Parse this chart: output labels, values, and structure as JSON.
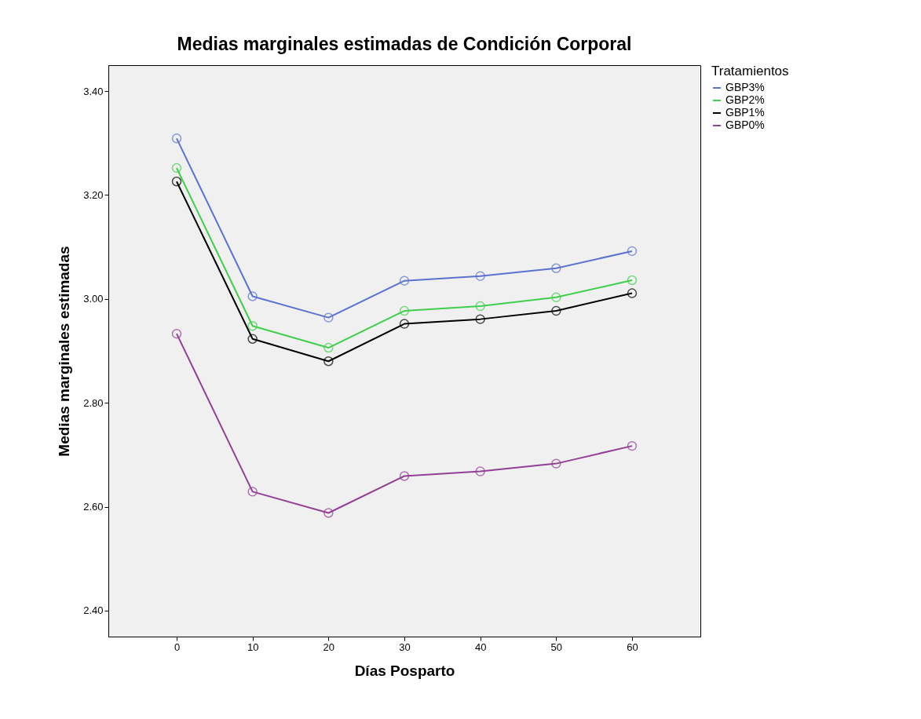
{
  "chart_data": {
    "type": "line",
    "title": "Medias marginales estimadas de Condición Corporal",
    "xlabel": "Días Posparto",
    "ylabel": "Medias marginales estimadas",
    "legend_title": "Tratamientos",
    "legend": "right",
    "marker": "circle",
    "grid": false,
    "x": [
      0,
      10,
      20,
      30,
      40,
      50,
      60
    ],
    "xlim": [
      -9,
      69
    ],
    "xticks": [
      0,
      10,
      20,
      30,
      40,
      50,
      60
    ],
    "ylim": [
      2.35,
      3.45
    ],
    "yticks": [
      {
        "value": 2.4,
        "label": "2.40"
      },
      {
        "value": 2.6,
        "label": "2.60"
      },
      {
        "value": 2.8,
        "label": "2.80"
      },
      {
        "value": 3.0,
        "label": "3.00"
      },
      {
        "value": 3.2,
        "label": "3.20"
      },
      {
        "value": 3.4,
        "label": "3.40"
      }
    ],
    "series": [
      {
        "name": "GBP3%",
        "color": "#5b73cf",
        "values": [
          3.309,
          3.005,
          2.964,
          3.035,
          3.044,
          3.059,
          3.092
        ]
      },
      {
        "name": "GBP2%",
        "color": "#3fcf4c",
        "values": [
          3.252,
          2.948,
          2.906,
          2.977,
          2.986,
          3.003,
          3.036
        ]
      },
      {
        "name": "GBP1%",
        "color": "#000000",
        "values": [
          3.226,
          2.923,
          2.88,
          2.952,
          2.961,
          2.977,
          3.011
        ]
      },
      {
        "name": "GBP0%",
        "color": "#943f96",
        "values": [
          2.933,
          2.629,
          2.588,
          2.659,
          2.668,
          2.683,
          2.717
        ]
      }
    ]
  }
}
